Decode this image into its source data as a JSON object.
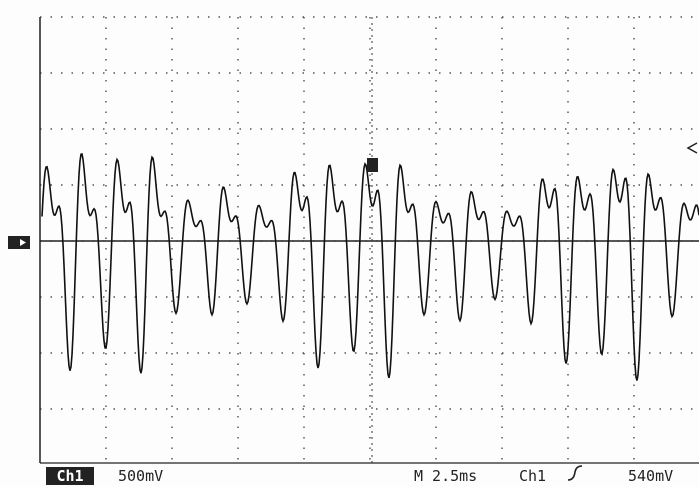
{
  "status_bar": {
    "channel": "Ch1",
    "volts_per_div": "500mV",
    "timebase": "M 2.5ms",
    "trigger_source": "Ch1",
    "trigger_level": "540mV"
  }
}
